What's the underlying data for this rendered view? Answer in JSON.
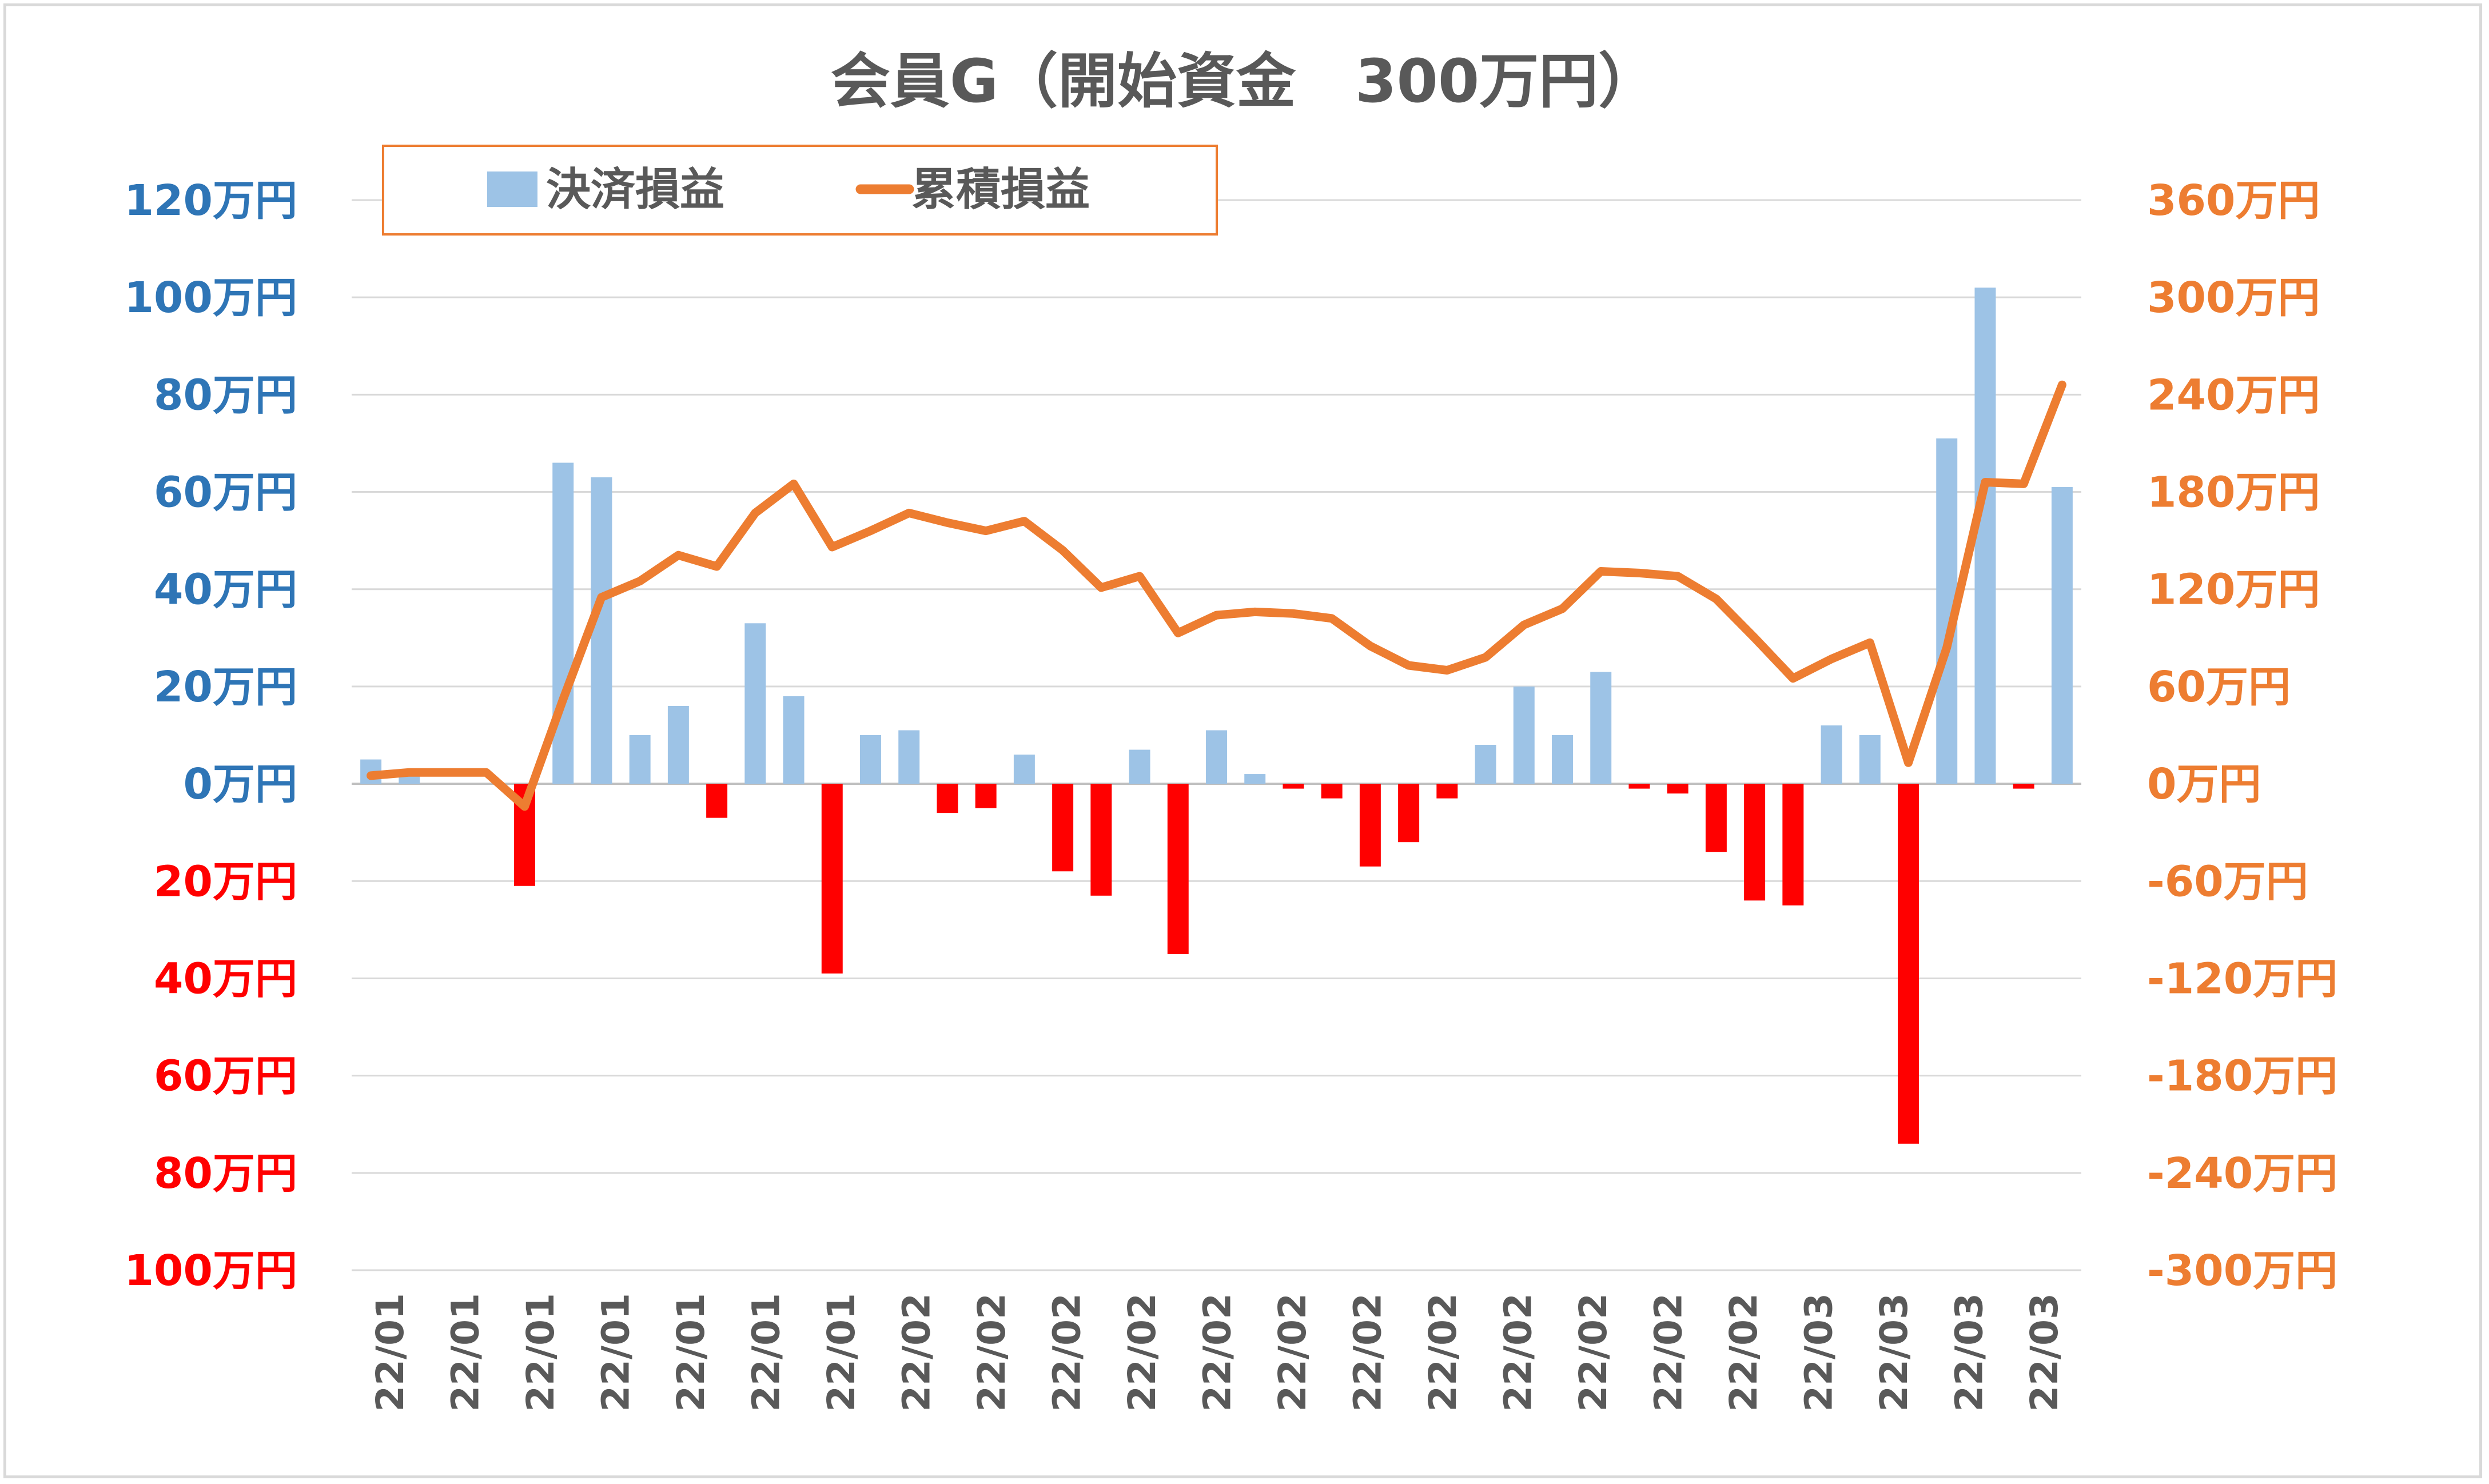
{
  "chart_data": {
    "type": "bar",
    "title": "会員G（開始資金　300万円）",
    "categories": [
      "22/01",
      "22/01",
      "22/01",
      "22/01",
      "22/01",
      "22/01",
      "22/01",
      "22/01",
      "22/01",
      "22/01",
      "22/01",
      "22/01",
      "22/02",
      "22/02",
      "22/02",
      "22/02",
      "22/02",
      "22/02",
      "22/02",
      "22/02",
      "22/02",
      "22/02",
      "22/02",
      "22/02",
      "22/02",
      "22/02",
      "22/02",
      "22/02",
      "22/02",
      "22/02",
      "22/02",
      "22/02",
      "22/02",
      "22/02",
      "22/02",
      "22/02",
      "22/03",
      "22/03",
      "22/03",
      "22/03",
      "22/03",
      "22/03",
      "22/03",
      "22/03",
      "22/03"
    ],
    "x_tick_labels": [
      "22/01",
      "22/01",
      "22/01",
      "22/01",
      "22/01",
      "22/01",
      "22/01",
      "22/02",
      "22/02",
      "22/02",
      "22/02",
      "22/02",
      "22/02",
      "22/02",
      "22/02",
      "22/02",
      "22/02",
      "22/02",
      "22/02",
      "22/03",
      "22/03",
      "22/03",
      "22/03"
    ],
    "series": [
      {
        "name": "決済損益",
        "type": "bar",
        "axis": "left",
        "color_positive": "#9dc3e6",
        "color_negative": "#ff0000",
        "values": [
          5,
          2,
          0,
          0,
          -21,
          66,
          63,
          10,
          16,
          -7,
          33,
          18,
          -39,
          10,
          11,
          -6,
          -5,
          6,
          -18,
          -23,
          7,
          -35,
          11,
          2,
          -1,
          -3,
          -17,
          -12,
          -3,
          8,
          20,
          10,
          23,
          -1,
          -2,
          -14,
          -24,
          -25,
          12,
          10,
          -74,
          71,
          102,
          -1,
          61
        ]
      },
      {
        "name": "累積損益",
        "type": "line",
        "axis": "right",
        "color": "#ed7d31",
        "values": [
          5,
          7,
          7,
          7,
          -14,
          52,
          115,
          125,
          141,
          134,
          167,
          185,
          146,
          156,
          167,
          161,
          156,
          162,
          144,
          121,
          128,
          93,
          104,
          106,
          105,
          102,
          85,
          73,
          70,
          78,
          98,
          108,
          131,
          130,
          128,
          114,
          90,
          65,
          77,
          87,
          13,
          84,
          186,
          185,
          246
        ]
      }
    ],
    "y_left": {
      "min": -100,
      "max": 120,
      "step": 20,
      "tick_labels": [
        "120万円",
        "100万円",
        "80万円",
        "60万円",
        "40万円",
        "20万円",
        "0万円",
        "20万円",
        "40万円",
        "60万円",
        "80万円",
        "100万円"
      ],
      "positive_color": "#2e75b6",
      "negative_color": "#ff0000"
    },
    "y_right": {
      "min": -300,
      "max": 360,
      "step": 60,
      "tick_labels": [
        "360万円",
        "300万円",
        "240万円",
        "180万円",
        "120万円",
        "60万円",
        "0万円",
        "-60万円",
        "-120万円",
        "-180万円",
        "-240万円",
        "-300万円"
      ],
      "color": "#ed7d31"
    },
    "legend": {
      "position": "top-left",
      "border_color": "#ed7d31"
    },
    "grid": true,
    "colors": {
      "title": "#595959",
      "grid": "#d9d9d9",
      "axis_text": "#595959"
    }
  }
}
